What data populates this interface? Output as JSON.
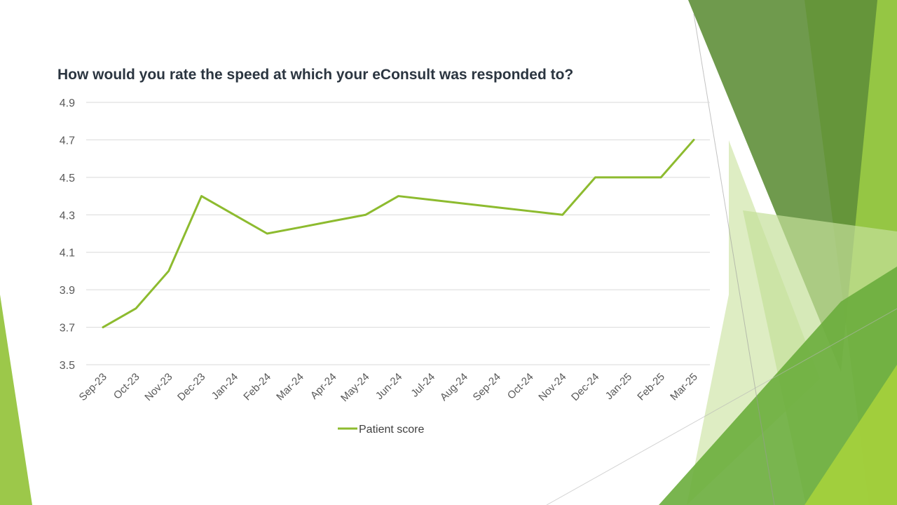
{
  "chart_data": {
    "type": "line",
    "title": "How would you rate the speed at which your eConsult was responded to?",
    "xlabel": "",
    "ylabel": "",
    "categories": [
      "Sep-23",
      "Oct-23",
      "Nov-23",
      "Dec-23",
      "Jan-24",
      "Feb-24",
      "Mar-24",
      "Apr-24",
      "May-24",
      "Jun-24",
      "Jul-24",
      "Aug-24",
      "Sep-24",
      "Oct-24",
      "Nov-24",
      "Dec-24",
      "Jan-25",
      "Feb-25",
      "Mar-25"
    ],
    "series": [
      {
        "name": "Patient score",
        "color": "#8dbb2f",
        "values": [
          3.7,
          3.8,
          4.0,
          4.4,
          4.3,
          4.2,
          4.233,
          4.267,
          4.3,
          4.4,
          4.38,
          4.36,
          4.34,
          4.32,
          4.3,
          4.5,
          4.5,
          4.5,
          4.7
        ]
      }
    ],
    "yticks": [
      "3.5",
      "3.7",
      "3.9",
      "4.1",
      "4.3",
      "4.5",
      "4.7",
      "4.9"
    ],
    "ylim": [
      3.5,
      4.9
    ],
    "grid": true,
    "legend_position": "bottom"
  },
  "colors": {
    "accent": "#8dbb2f",
    "gridline": "#d9d9d9",
    "title": "#2b3540"
  }
}
